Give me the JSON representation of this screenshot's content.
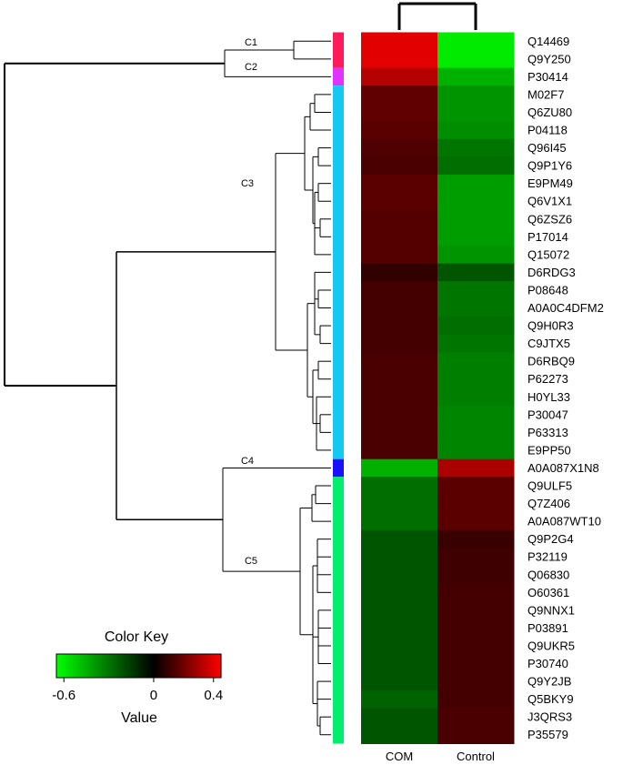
{
  "chart_data": {
    "type": "heatmap",
    "title": "",
    "columns": [
      "COM",
      "Control"
    ],
    "rows": [
      {
        "id": "Q14469",
        "cluster": "C1",
        "values": [
          0.4,
          -0.6
        ]
      },
      {
        "id": "Q9Y250",
        "cluster": "C1",
        "values": [
          0.4,
          -0.6
        ]
      },
      {
        "id": "P30414",
        "cluster": "C2",
        "values": [
          0.32,
          -0.45
        ]
      },
      {
        "id": "M02F7",
        "cluster": "C3",
        "values": [
          0.17,
          -0.38
        ]
      },
      {
        "id": "Q6ZU80",
        "cluster": "C3",
        "values": [
          0.17,
          -0.38
        ]
      },
      {
        "id": "P04118",
        "cluster": "C3",
        "values": [
          0.16,
          -0.36
        ]
      },
      {
        "id": "Q96I45",
        "cluster": "C3",
        "values": [
          0.14,
          -0.3
        ]
      },
      {
        "id": "Q9P1Y6",
        "cluster": "C3",
        "values": [
          0.13,
          -0.28
        ]
      },
      {
        "id": "E9PM49",
        "cluster": "C3",
        "values": [
          0.16,
          -0.4
        ]
      },
      {
        "id": "Q6V1X1",
        "cluster": "C3",
        "values": [
          0.16,
          -0.4
        ]
      },
      {
        "id": "Q6ZSZ6",
        "cluster": "C3",
        "values": [
          0.15,
          -0.4
        ]
      },
      {
        "id": "P17014",
        "cluster": "C3",
        "values": [
          0.15,
          -0.4
        ]
      },
      {
        "id": "Q15072",
        "cluster": "C3",
        "values": [
          0.15,
          -0.38
        ]
      },
      {
        "id": "D6RDG3",
        "cluster": "C3",
        "values": [
          0.09,
          -0.22
        ]
      },
      {
        "id": "P08648",
        "cluster": "C3",
        "values": [
          0.12,
          -0.3
        ]
      },
      {
        "id": "A0A0C4DFM2",
        "cluster": "C3",
        "values": [
          0.12,
          -0.3
        ]
      },
      {
        "id": "Q9H0R3",
        "cluster": "C3",
        "values": [
          0.12,
          -0.28
        ]
      },
      {
        "id": "C9JTX5",
        "cluster": "C3",
        "values": [
          0.12,
          -0.3
        ]
      },
      {
        "id": "D6RBQ9",
        "cluster": "C3",
        "values": [
          0.13,
          -0.32
        ]
      },
      {
        "id": "P62273",
        "cluster": "C3",
        "values": [
          0.13,
          -0.32
        ]
      },
      {
        "id": "H0YL33",
        "cluster": "C3",
        "values": [
          0.13,
          -0.32
        ]
      },
      {
        "id": "P30047",
        "cluster": "C3",
        "values": [
          0.13,
          -0.34
        ]
      },
      {
        "id": "P63313",
        "cluster": "C3",
        "values": [
          0.13,
          -0.34
        ]
      },
      {
        "id": "E9PP50",
        "cluster": "C3",
        "values": [
          0.13,
          -0.34
        ]
      },
      {
        "id": "A0A087X1N8",
        "cluster": "C4",
        "values": [
          -0.45,
          0.3
        ]
      },
      {
        "id": "Q9ULF5",
        "cluster": "C5",
        "values": [
          -0.28,
          0.16
        ]
      },
      {
        "id": "Q7Z406",
        "cluster": "C5",
        "values": [
          -0.28,
          0.16
        ]
      },
      {
        "id": "A0A087WT10",
        "cluster": "C5",
        "values": [
          -0.28,
          0.16
        ]
      },
      {
        "id": "Q9P2G4",
        "cluster": "C5",
        "values": [
          -0.22,
          0.1
        ]
      },
      {
        "id": "P32119",
        "cluster": "C5",
        "values": [
          -0.22,
          0.11
        ]
      },
      {
        "id": "Q06830",
        "cluster": "C5",
        "values": [
          -0.22,
          0.11
        ]
      },
      {
        "id": "O60361",
        "cluster": "C5",
        "values": [
          -0.22,
          0.12
        ]
      },
      {
        "id": "Q9NNX1",
        "cluster": "C5",
        "values": [
          -0.22,
          0.12
        ]
      },
      {
        "id": "P03891",
        "cluster": "C5",
        "values": [
          -0.22,
          0.12
        ]
      },
      {
        "id": "Q9UKR5",
        "cluster": "C5",
        "values": [
          -0.22,
          0.12
        ]
      },
      {
        "id": "P30740",
        "cluster": "C5",
        "values": [
          -0.22,
          0.12
        ]
      },
      {
        "id": "Q9Y2JB",
        "cluster": "C5",
        "values": [
          -0.22,
          0.12
        ]
      },
      {
        "id": "Q5BKY9",
        "cluster": "C5",
        "values": [
          -0.25,
          0.12
        ]
      },
      {
        "id": "J3QRS3",
        "cluster": "C5",
        "values": [
          -0.22,
          0.13
        ]
      },
      {
        "id": "P35579",
        "cluster": "C5",
        "values": [
          -0.22,
          0.13
        ]
      }
    ],
    "clusters": [
      {
        "label": "C1",
        "color": "#ff1a5a"
      },
      {
        "label": "C2",
        "color": "#e033ff"
      },
      {
        "label": "C3",
        "color": "#14c8f0"
      },
      {
        "label": "C4",
        "color": "#1a10ff"
      },
      {
        "label": "C5",
        "color": "#00ef6e"
      }
    ],
    "color_scale": {
      "min": -0.65,
      "max": 0.45,
      "low_color": "#00ff00",
      "mid_color": "#000000",
      "high_color": "#ff0000"
    },
    "color_key": {
      "title": "Color Key",
      "xlabel": "Value",
      "ticks": [
        "-0.6",
        "0",
        "0.4"
      ],
      "tick_values": [
        -0.6,
        0,
        0.4
      ]
    }
  }
}
